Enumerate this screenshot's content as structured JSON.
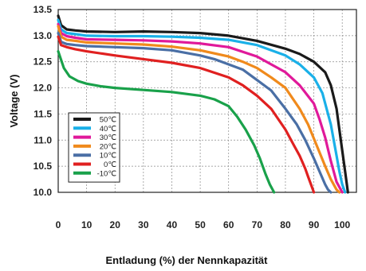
{
  "chart_data": {
    "type": "line",
    "xlabel": "Entladung (%) der Nennkapazität",
    "ylabel": "Voltage (V)",
    "xlim": [
      0,
      105
    ],
    "ylim": [
      10.0,
      13.5
    ],
    "x_ticks": [
      "0",
      "10",
      "20",
      "30",
      "40",
      "50",
      "60",
      "70",
      "80",
      "90",
      "100"
    ],
    "y_ticks": [
      "10.0",
      "10.5",
      "11.0",
      "11.5",
      "12.0",
      "12.5",
      "13.0",
      "13.5"
    ],
    "grid": true,
    "legend_position": "lower-left",
    "series": [
      {
        "name": "50℃",
        "color": "#1a1a1a",
        "x": [
          0,
          1,
          3,
          6,
          10,
          20,
          30,
          40,
          50,
          60,
          70,
          80,
          85,
          90,
          94,
          96,
          98,
          99,
          100,
          101,
          102
        ],
        "y": [
          13.38,
          13.2,
          13.12,
          13.1,
          13.08,
          13.07,
          13.08,
          13.07,
          13.05,
          13.0,
          12.9,
          12.75,
          12.65,
          12.5,
          12.3,
          12.05,
          11.6,
          11.2,
          10.8,
          10.4,
          10.0
        ]
      },
      {
        "name": "40℃",
        "color": "#1ab0e8",
        "x": [
          0,
          1,
          3,
          6,
          10,
          20,
          30,
          40,
          50,
          60,
          70,
          80,
          85,
          90,
          93,
          96,
          97,
          98,
          99,
          100,
          101
        ],
        "y": [
          13.3,
          13.12,
          13.05,
          13.03,
          13.0,
          12.99,
          12.99,
          12.98,
          12.96,
          12.92,
          12.82,
          12.62,
          12.45,
          12.2,
          11.9,
          11.3,
          11.0,
          10.7,
          10.4,
          10.15,
          10.0
        ]
      },
      {
        "name": "30℃",
        "color": "#e0199a",
        "x": [
          0,
          1,
          3,
          6,
          10,
          20,
          30,
          40,
          50,
          60,
          70,
          75,
          80,
          85,
          90,
          92,
          94,
          96,
          98,
          100
        ],
        "y": [
          13.22,
          13.05,
          12.99,
          12.96,
          12.93,
          12.92,
          12.91,
          12.89,
          12.85,
          12.78,
          12.6,
          12.45,
          12.3,
          12.05,
          11.7,
          11.4,
          11.05,
          10.6,
          10.2,
          10.0
        ]
      },
      {
        "name": "20℃",
        "color": "#f08a1c",
        "x": [
          0,
          1,
          3,
          6,
          10,
          20,
          30,
          40,
          50,
          60,
          65,
          70,
          75,
          80,
          85,
          88,
          91,
          94,
          96,
          98,
          99
        ],
        "y": [
          13.18,
          12.98,
          12.92,
          12.9,
          12.87,
          12.85,
          12.83,
          12.79,
          12.72,
          12.6,
          12.5,
          12.38,
          12.2,
          12.0,
          11.6,
          11.3,
          10.9,
          10.5,
          10.25,
          10.05,
          10.0
        ]
      },
      {
        "name": "10℃",
        "color": "#4a6fa5",
        "x": [
          0,
          1,
          3,
          6,
          10,
          20,
          30,
          40,
          50,
          55,
          60,
          65,
          70,
          75,
          80,
          84,
          87,
          90,
          92,
          94,
          95,
          96
        ],
        "y": [
          13.05,
          12.88,
          12.84,
          12.82,
          12.8,
          12.78,
          12.76,
          12.72,
          12.62,
          12.55,
          12.45,
          12.35,
          12.15,
          11.95,
          11.6,
          11.3,
          11.0,
          10.65,
          10.4,
          10.15,
          10.05,
          10.0
        ]
      },
      {
        "name": "0℃",
        "color": "#e02020",
        "x": [
          0,
          1,
          3,
          6,
          10,
          20,
          30,
          40,
          50,
          60,
          65,
          70,
          75,
          80,
          83,
          85,
          87,
          88,
          89,
          90
        ],
        "y": [
          12.98,
          12.82,
          12.78,
          12.74,
          12.7,
          12.62,
          12.55,
          12.48,
          12.38,
          12.2,
          12.05,
          11.85,
          11.6,
          11.2,
          10.9,
          10.7,
          10.45,
          10.3,
          10.15,
          10.0
        ]
      },
      {
        "name": "-10℃",
        "color": "#19a14a",
        "x": [
          0,
          2,
          4,
          7,
          10,
          15,
          20,
          30,
          40,
          50,
          55,
          60,
          63,
          66,
          69,
          71,
          73,
          74.5,
          76
        ],
        "y": [
          12.7,
          12.38,
          12.22,
          12.13,
          12.08,
          12.03,
          12.0,
          11.96,
          11.92,
          11.85,
          11.78,
          11.65,
          11.45,
          11.2,
          10.9,
          10.65,
          10.35,
          10.15,
          10.0
        ]
      }
    ]
  }
}
